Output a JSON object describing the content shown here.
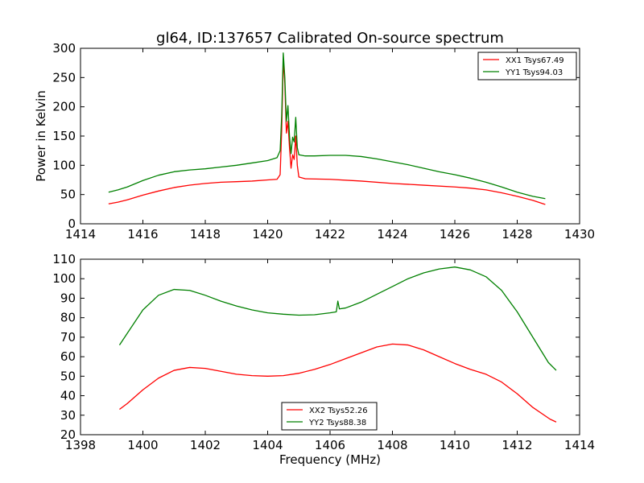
{
  "figure": {
    "title": "gl64, ID:137657 Calibrated On-source spectrum"
  },
  "chart_data": [
    {
      "type": "line",
      "title": "gl64, ID:137657 Calibrated On-source spectrum",
      "xlabel": "",
      "ylabel": "Power in Kelvin",
      "xlim": [
        1414,
        1430
      ],
      "ylim": [
        0,
        300
      ],
      "x_ticks": [
        1414,
        1416,
        1418,
        1420,
        1422,
        1424,
        1426,
        1428,
        1430
      ],
      "y_ticks": [
        0,
        50,
        100,
        150,
        200,
        250,
        300
      ],
      "grid": false,
      "legend_position": "top-right",
      "series": [
        {
          "name": "XX1 Tsys67.49",
          "color": "#ff0000",
          "points": [
            [
              1414.9,
              34
            ],
            [
              1415.2,
              37
            ],
            [
              1415.5,
              41
            ],
            [
              1416,
              49
            ],
            [
              1416.5,
              56
            ],
            [
              1417,
              62
            ],
            [
              1417.5,
              66
            ],
            [
              1418,
              69
            ],
            [
              1418.5,
              71
            ],
            [
              1419,
              72
            ],
            [
              1419.5,
              73
            ],
            [
              1420,
              75
            ],
            [
              1420.3,
              76
            ],
            [
              1420.4,
              84
            ],
            [
              1420.45,
              160
            ],
            [
              1420.5,
              280
            ],
            [
              1420.55,
              240
            ],
            [
              1420.6,
              155
            ],
            [
              1420.65,
              175
            ],
            [
              1420.7,
              130
            ],
            [
              1420.75,
              95
            ],
            [
              1420.8,
              118
            ],
            [
              1420.85,
              110
            ],
            [
              1420.9,
              150
            ],
            [
              1420.95,
              100
            ],
            [
              1421,
              80
            ],
            [
              1421.2,
              77
            ],
            [
              1422,
              76
            ],
            [
              1423,
              73
            ],
            [
              1424,
              69
            ],
            [
              1425,
              66
            ],
            [
              1426,
              63
            ],
            [
              1426.5,
              61
            ],
            [
              1427,
              58
            ],
            [
              1427.5,
              53
            ],
            [
              1428,
              47
            ],
            [
              1428.5,
              40
            ],
            [
              1428.9,
              33
            ]
          ]
        },
        {
          "name": "YY1 Tsys94.03",
          "color": "#008000",
          "points": [
            [
              1414.9,
              54
            ],
            [
              1415.2,
              58
            ],
            [
              1415.5,
              63
            ],
            [
              1416,
              74
            ],
            [
              1416.5,
              83
            ],
            [
              1417,
              89
            ],
            [
              1417.5,
              92
            ],
            [
              1418,
              94
            ],
            [
              1418.5,
              97
            ],
            [
              1419,
              100
            ],
            [
              1419.5,
              104
            ],
            [
              1420,
              108
            ],
            [
              1420.3,
              113
            ],
            [
              1420.4,
              125
            ],
            [
              1420.45,
              185
            ],
            [
              1420.5,
              292
            ],
            [
              1420.55,
              250
            ],
            [
              1420.6,
              175
            ],
            [
              1420.65,
              202
            ],
            [
              1420.7,
              150
            ],
            [
              1420.75,
              120
            ],
            [
              1420.8,
              148
            ],
            [
              1420.85,
              140
            ],
            [
              1420.9,
              182
            ],
            [
              1420.95,
              130
            ],
            [
              1421,
              118
            ],
            [
              1421.2,
              116
            ],
            [
              1421.5,
              116
            ],
            [
              1422,
              117
            ],
            [
              1422.5,
              117
            ],
            [
              1423,
              115
            ],
            [
              1423.5,
              111
            ],
            [
              1424,
              106
            ],
            [
              1424.5,
              101
            ],
            [
              1425,
              95
            ],
            [
              1425.5,
              89
            ],
            [
              1426,
              84
            ],
            [
              1426.5,
              78
            ],
            [
              1427,
              71
            ],
            [
              1427.5,
              63
            ],
            [
              1428,
              54
            ],
            [
              1428.5,
              47
            ],
            [
              1428.9,
              43
            ]
          ]
        }
      ]
    },
    {
      "type": "line",
      "title": "",
      "xlabel": "Frequency (MHz)",
      "ylabel": "",
      "xlim": [
        1398,
        1414
      ],
      "ylim": [
        20,
        110
      ],
      "x_ticks": [
        1398,
        1400,
        1402,
        1404,
        1406,
        1408,
        1410,
        1412,
        1414
      ],
      "y_ticks": [
        20,
        30,
        40,
        50,
        60,
        70,
        80,
        90,
        100,
        110
      ],
      "grid": false,
      "legend_position": "bottom-center",
      "series": [
        {
          "name": "XX2 Tsys52.26",
          "color": "#ff0000",
          "points": [
            [
              1399.25,
              33
            ],
            [
              1399.5,
              36
            ],
            [
              1400,
              43
            ],
            [
              1400.5,
              49
            ],
            [
              1401,
              53
            ],
            [
              1401.5,
              54.5
            ],
            [
              1402,
              54
            ],
            [
              1402.5,
              52.5
            ],
            [
              1403,
              51
            ],
            [
              1403.5,
              50.3
            ],
            [
              1404,
              50
            ],
            [
              1404.5,
              50.3
            ],
            [
              1405,
              51.5
            ],
            [
              1405.5,
              53.5
            ],
            [
              1406,
              56
            ],
            [
              1406.5,
              59
            ],
            [
              1407,
              62
            ],
            [
              1407.5,
              65
            ],
            [
              1408,
              66.5
            ],
            [
              1408.5,
              66
            ],
            [
              1409,
              63.5
            ],
            [
              1409.5,
              60
            ],
            [
              1410,
              56.5
            ],
            [
              1410.5,
              53.5
            ],
            [
              1411,
              51
            ],
            [
              1411.5,
              47
            ],
            [
              1412,
              41
            ],
            [
              1412.5,
              34
            ],
            [
              1413.05,
              28
            ],
            [
              1413.25,
              26.5
            ]
          ]
        },
        {
          "name": "YY2 Tsys88.38",
          "color": "#008000",
          "points": [
            [
              1399.25,
              66
            ],
            [
              1399.5,
              72
            ],
            [
              1400,
              84
            ],
            [
              1400.5,
              91.5
            ],
            [
              1401,
              94.5
            ],
            [
              1401.5,
              94
            ],
            [
              1402,
              91.5
            ],
            [
              1402.5,
              88.5
            ],
            [
              1403,
              86
            ],
            [
              1403.5,
              84
            ],
            [
              1404,
              82.5
            ],
            [
              1404.5,
              81.8
            ],
            [
              1405,
              81.3
            ],
            [
              1405.5,
              81.5
            ],
            [
              1406,
              82.5
            ],
            [
              1406.2,
              83
            ],
            [
              1406.25,
              88.5
            ],
            [
              1406.3,
              84.5
            ],
            [
              1406.5,
              85
            ],
            [
              1407,
              88
            ],
            [
              1407.5,
              92
            ],
            [
              1408,
              96
            ],
            [
              1408.5,
              100
            ],
            [
              1409,
              103
            ],
            [
              1409.5,
              105
            ],
            [
              1410,
              106
            ],
            [
              1410.5,
              104.5
            ],
            [
              1411,
              101
            ],
            [
              1411.5,
              94
            ],
            [
              1412,
              83
            ],
            [
              1412.5,
              70
            ],
            [
              1413,
              57
            ],
            [
              1413.25,
              53
            ]
          ]
        }
      ]
    }
  ]
}
